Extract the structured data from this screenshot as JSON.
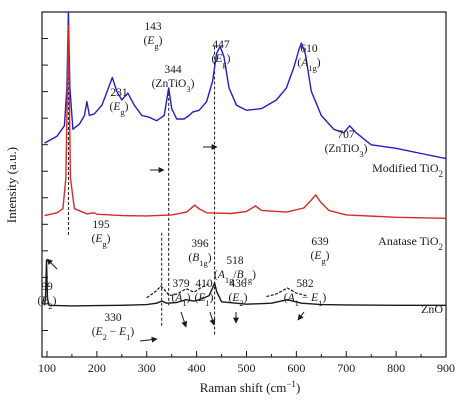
{
  "chart_data": {
    "type": "line",
    "xlabel": "Raman shift (cm",
    "xlabel_sup": "−1",
    "xlabel_end": ")",
    "ylabel": "Intensity (a.u.)",
    "xlim": [
      90,
      900
    ],
    "xticks": [
      100,
      200,
      300,
      400,
      500,
      600,
      700,
      800,
      900
    ],
    "grid": false,
    "series": [
      {
        "name": "Modified TiO",
        "name_sub": "2",
        "color": "#2020c8",
        "points": [
          [
            95,
            0.62
          ],
          [
            120,
            0.64
          ],
          [
            135,
            0.67
          ],
          [
            140,
            0.78
          ],
          [
            143,
            1.0
          ],
          [
            146,
            0.78
          ],
          [
            152,
            0.66
          ],
          [
            165,
            0.675
          ],
          [
            175,
            0.7
          ],
          [
            180,
            0.74
          ],
          [
            185,
            0.7
          ],
          [
            195,
            0.705
          ],
          [
            210,
            0.73
          ],
          [
            222,
            0.775
          ],
          [
            231,
            0.81
          ],
          [
            240,
            0.77
          ],
          [
            250,
            0.745
          ],
          [
            262,
            0.765
          ],
          [
            275,
            0.73
          ],
          [
            290,
            0.7
          ],
          [
            305,
            0.695
          ],
          [
            320,
            0.685
          ],
          [
            335,
            0.7
          ],
          [
            344,
            0.78
          ],
          [
            350,
            0.72
          ],
          [
            360,
            0.69
          ],
          [
            375,
            0.69
          ],
          [
            385,
            0.7
          ],
          [
            392,
            0.71
          ],
          [
            405,
            0.715
          ],
          [
            420,
            0.74
          ],
          [
            432,
            0.8
          ],
          [
            440,
            0.88
          ],
          [
            447,
            0.9
          ],
          [
            455,
            0.87
          ],
          [
            465,
            0.78
          ],
          [
            480,
            0.73
          ],
          [
            500,
            0.715
          ],
          [
            530,
            0.72
          ],
          [
            560,
            0.745
          ],
          [
            580,
            0.78
          ],
          [
            595,
            0.84
          ],
          [
            605,
            0.89
          ],
          [
            610,
            0.91
          ],
          [
            618,
            0.88
          ],
          [
            630,
            0.77
          ],
          [
            650,
            0.7
          ],
          [
            675,
            0.66
          ],
          [
            695,
            0.65
          ],
          [
            707,
            0.67
          ],
          [
            720,
            0.65
          ],
          [
            750,
            0.615
          ],
          [
            800,
            0.605
          ],
          [
            850,
            0.59
          ],
          [
            900,
            0.575
          ]
        ]
      },
      {
        "name": "Anatase TiO",
        "name_sub": "2",
        "color": "#d62a2a",
        "points": [
          [
            95,
            0.41
          ],
          [
            120,
            0.418
          ],
          [
            132,
            0.43
          ],
          [
            138,
            0.52
          ],
          [
            143,
            0.96
          ],
          [
            147,
            0.52
          ],
          [
            155,
            0.43
          ],
          [
            180,
            0.415
          ],
          [
            195,
            0.418
          ],
          [
            200,
            0.414
          ],
          [
            250,
            0.41
          ],
          [
            300,
            0.409
          ],
          [
            350,
            0.412
          ],
          [
            380,
            0.42
          ],
          [
            396,
            0.44
          ],
          [
            405,
            0.43
          ],
          [
            420,
            0.418
          ],
          [
            470,
            0.416
          ],
          [
            500,
            0.422
          ],
          [
            518,
            0.438
          ],
          [
            530,
            0.425
          ],
          [
            580,
            0.42
          ],
          [
            615,
            0.432
          ],
          [
            630,
            0.455
          ],
          [
            639,
            0.47
          ],
          [
            648,
            0.45
          ],
          [
            665,
            0.425
          ],
          [
            700,
            0.412
          ],
          [
            800,
            0.405
          ],
          [
            900,
            0.402
          ]
        ]
      },
      {
        "name": "ZnO",
        "name_sub": "",
        "color": "#1a1a1a",
        "points": [
          [
            95,
            0.15
          ],
          [
            97,
            0.17
          ],
          [
            99,
            0.28
          ],
          [
            101,
            0.17
          ],
          [
            104,
            0.15
          ],
          [
            150,
            0.148
          ],
          [
            200,
            0.149
          ],
          [
            250,
            0.15
          ],
          [
            300,
            0.152
          ],
          [
            320,
            0.156
          ],
          [
            330,
            0.162
          ],
          [
            340,
            0.156
          ],
          [
            360,
            0.158
          ],
          [
            379,
            0.166
          ],
          [
            395,
            0.162
          ],
          [
            410,
            0.168
          ],
          [
            425,
            0.178
          ],
          [
            432,
            0.2
          ],
          [
            436,
            0.215
          ],
          [
            440,
            0.19
          ],
          [
            450,
            0.16
          ],
          [
            500,
            0.153
          ],
          [
            550,
            0.156
          ],
          [
            582,
            0.166
          ],
          [
            610,
            0.156
          ],
          [
            650,
            0.152
          ],
          [
            700,
            0.151
          ],
          [
            800,
            0.15
          ],
          [
            900,
            0.15
          ]
        ]
      }
    ],
    "peak_labels": [
      {
        "x": 143,
        "y": 1.06,
        "value": "143",
        "mode": "E",
        "mode_sub": "g"
      },
      {
        "x": 231,
        "y": 0.88,
        "value": "231",
        "mode": "E",
        "mode_sub": "g"
      },
      {
        "x": 344,
        "y": 0.95,
        "value": "344",
        "mode": "ZnTiO",
        "mode_sub": "3"
      },
      {
        "x": 447,
        "y": 1.01,
        "value": "447",
        "mode": "E",
        "mode_sub": "g"
      },
      {
        "x": 610,
        "y": 1.01,
        "value": "610",
        "mode": "A",
        "mode_sub": "1g"
      },
      {
        "x": 707,
        "y": 0.74,
        "value": "707",
        "mode": "ZnTiO",
        "mode_sub": "3"
      },
      {
        "x": 195,
        "y": 0.53,
        "value": "195",
        "mode": "E",
        "mode_sub": "g"
      },
      {
        "x": 396,
        "y": 0.53,
        "value": "396",
        "mode": "B",
        "mode_sub": "1g"
      },
      {
        "x": 518,
        "y": 0.53,
        "value": "518",
        "mode": "A1g/B1g"
      },
      {
        "x": 639,
        "y": 0.55,
        "value": "639",
        "mode": "E",
        "mode_sub": "g"
      },
      {
        "x": 99,
        "y": 0.39,
        "value": "99",
        "mode": "E",
        "mode_sub": "2"
      },
      {
        "x": 330,
        "y": 0.36,
        "value": "330",
        "mode": "E2 − E1"
      },
      {
        "x": 379,
        "y": 0.36,
        "value": "379",
        "mode": "A",
        "mode_sub": "1"
      },
      {
        "x": 410,
        "y": 0.36,
        "value": "410",
        "mode": "E",
        "mode_sub": "1"
      },
      {
        "x": 436,
        "y": 0.36,
        "value": "436",
        "mode": "E",
        "mode_sub": "2"
      },
      {
        "x": 582,
        "y": 0.36,
        "value": "582",
        "mode": "A1 − E1"
      }
    ]
  }
}
